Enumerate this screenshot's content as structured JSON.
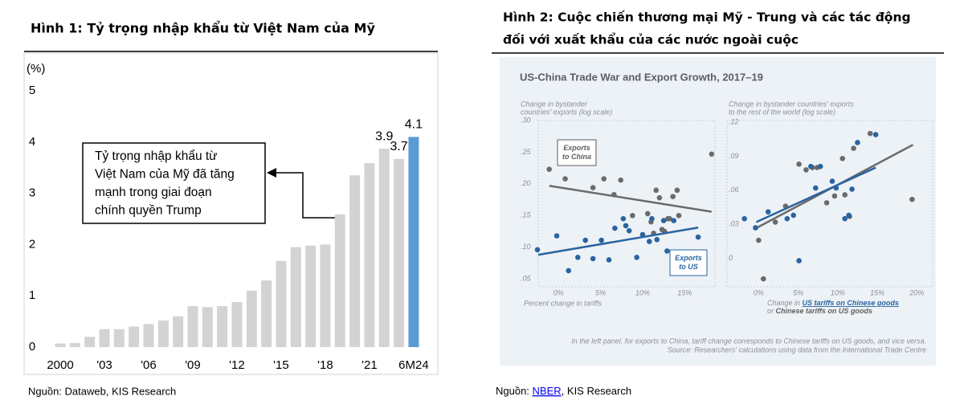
{
  "figures": [
    {
      "title": "Hình 1: Tỷ trọng nhập khẩu từ Việt Nam của Mỹ",
      "source": "Nguồn: Dataweb, KIS Research"
    },
    {
      "title": [
        "Hình 2: Cuộc chiến thương mại Mỹ - Trung và các tác động",
        "đối với xuất khẩu của các nước ngoài cuộc"
      ],
      "source_prefix": "Nguồn: ",
      "source_link": "NBER",
      "source_suffix": ", KIS Research"
    }
  ],
  "chart_data": [
    {
      "type": "bar",
      "ylabel": "(%)",
      "categories": [
        "2000",
        null,
        null,
        "'03",
        null,
        null,
        "'06",
        null,
        null,
        "'09",
        null,
        null,
        "'12",
        null,
        null,
        "'15",
        null,
        null,
        "'18",
        null,
        null,
        "'21",
        null,
        null,
        "6M24"
      ],
      "values": [
        0.07,
        0.08,
        0.2,
        0.35,
        0.35,
        0.4,
        0.45,
        0.52,
        0.6,
        0.8,
        0.78,
        0.8,
        0.88,
        1.1,
        1.3,
        1.68,
        1.95,
        1.98,
        2.0,
        2.59,
        3.35,
        3.59,
        3.87,
        3.67,
        4.1
      ],
      "value_labels": [
        null,
        null,
        null,
        null,
        null,
        null,
        null,
        null,
        null,
        null,
        null,
        null,
        null,
        null,
        null,
        null,
        null,
        null,
        null,
        null,
        null,
        null,
        "3.9",
        "3.7",
        "4.1"
      ],
      "colors": [
        "#d3d3d3",
        "#d3d3d3",
        "#d3d3d3",
        "#d3d3d3",
        "#d3d3d3",
        "#d3d3d3",
        "#d3d3d3",
        "#d3d3d3",
        "#d3d3d3",
        "#d3d3d3",
        "#d3d3d3",
        "#d3d3d3",
        "#d3d3d3",
        "#d3d3d3",
        "#d3d3d3",
        "#d3d3d3",
        "#d3d3d3",
        "#d3d3d3",
        "#d3d3d3",
        "#d3d3d3",
        "#d3d3d3",
        "#d3d3d3",
        "#d3d3d3",
        "#d3d3d3",
        "#5b9bd5"
      ],
      "ylim": [
        0,
        5
      ],
      "yticks": [
        0,
        1,
        2,
        3,
        4,
        5
      ],
      "annotation": [
        "Tỷ trọng nhập khẩu từ",
        "Việt Nam của Mỹ đã tăng",
        "mạnh trong giai đoạn",
        "chính quyền Trump"
      ]
    },
    {
      "type": "scatter",
      "title": "US-China Trade War and Export Growth, 2017–19",
      "ylabel": [
        "Change in bystander",
        "countries' exports (log scale)"
      ],
      "xlabel": "Percent change in tariffs",
      "xlim": [
        -2.5,
        18.5
      ],
      "ylim": [
        0.04,
        0.3
      ],
      "xticks": [
        {
          "value": 0,
          "label": "0%"
        },
        {
          "value": 5,
          "label": "5%"
        },
        {
          "value": 10,
          "label": "10%"
        },
        {
          "value": 15,
          "label": "15%"
        }
      ],
      "yticks": [
        {
          "value": 0.05,
          "label": ".05"
        },
        {
          "value": 0.1,
          "label": ".10"
        },
        {
          "value": 0.15,
          "label": ".15"
        },
        {
          "value": 0.2,
          "label": ".20"
        },
        {
          "value": 0.25,
          "label": ".25"
        },
        {
          "value": 0.3,
          "label": ".30"
        }
      ],
      "series": [
        {
          "name": "Exports to China",
          "color": "#6b6b6b",
          "x": [
            -1.1,
            0.8,
            4.1,
            5.4,
            6.6,
            7.4,
            8.8,
            10.6,
            11.0,
            11.6,
            12.0,
            12.6,
            13.2,
            13.6,
            14.1,
            14.3,
            13.0,
            12.3,
            11.3,
            18.2
          ],
          "values": [
            0.223,
            0.208,
            0.194,
            0.208,
            0.183,
            0.206,
            0.15,
            0.153,
            0.14,
            0.19,
            0.178,
            0.125,
            0.145,
            0.18,
            0.19,
            0.15,
            0.145,
            0.128,
            0.122,
            0.247
          ],
          "trend": {
            "x": [
              -1.1,
              18.2
            ],
            "values": [
              0.197,
              0.156
            ]
          }
        },
        {
          "name": "Exports to US",
          "color": "#2a64a0",
          "x": [
            -2.5,
            -0.2,
            1.2,
            2.3,
            3.2,
            4.1,
            5.1,
            6.0,
            6.7,
            7.7,
            8.0,
            8.4,
            9.3,
            10.0,
            10.8,
            11.1,
            11.7,
            12.5,
            13.7,
            12.9,
            16.6
          ],
          "values": [
            0.096,
            0.118,
            0.063,
            0.084,
            0.111,
            0.082,
            0.111,
            0.08,
            0.13,
            0.145,
            0.134,
            0.126,
            0.084,
            0.12,
            0.109,
            0.145,
            0.112,
            0.142,
            0.142,
            0.094,
            0.116
          ],
          "trend": {
            "x": [
              -2.4,
              16.6
            ],
            "values": [
              0.088,
              0.131
            ]
          }
        }
      ]
    },
    {
      "type": "scatter",
      "ylabel": [
        "Change in bystander countries' exports",
        "to the rest of the world (log scale)"
      ],
      "xlabel": [
        [
          "Change in ",
          "US tariffs on Chinese goods"
        ],
        [
          "or ",
          "Chinese tariffs on US goods"
        ]
      ],
      "xlim": [
        -4,
        22
      ],
      "ylim": [
        -0.025,
        0.12
      ],
      "xticks": [
        {
          "value": 0,
          "label": "0%"
        },
        {
          "value": 5,
          "label": "5%"
        },
        {
          "value": 10,
          "label": "10%"
        },
        {
          "value": 15,
          "label": "15%"
        },
        {
          "value": 20,
          "label": "20%"
        }
      ],
      "yticks": [
        0,
        {
          "value": 0.03,
          "label": ".03"
        },
        {
          "value": 0.06,
          "label": ".06"
        },
        {
          "value": 0.09,
          "label": ".09"
        },
        {
          "value": 0.12,
          "label": ".12"
        }
      ],
      "series": [
        {
          "color": "#6b6b6b",
          "x": [
            0,
            0.6,
            2.1,
            3.4,
            5.1,
            6.0,
            7.4,
            8.6,
            9.6,
            10.6,
            11.5,
            12.0,
            14.1,
            19.4,
            10.9,
            6.8
          ],
          "values": [
            0.016,
            -0.018,
            0.032,
            0.046,
            0.083,
            0.078,
            0.08,
            0.049,
            0.055,
            0.088,
            0.037,
            0.097,
            0.11,
            0.052,
            0.056,
            0.08
          ],
          "trend": {
            "x": [
              -0.5,
              19.5
            ],
            "values": [
              0.026,
              0.1
            ]
          }
        },
        {
          "color": "#2a64a0",
          "x": [
            -1.8,
            -0.4,
            1.2,
            5.1,
            4.4,
            6.6,
            7.8,
            9.8,
            10.9,
            11.4,
            11.8,
            12.5,
            14.8,
            9.3,
            7.2,
            3.6
          ],
          "values": [
            0.035,
            0.027,
            0.041,
            -0.002,
            0.038,
            0.081,
            0.081,
            0.062,
            0.035,
            0.038,
            0.061,
            0.102,
            0.109,
            0.068,
            0.062,
            0.035
          ],
          "trend": {
            "x": [
              -0.3,
              14.8
            ],
            "values": [
              0.032,
              0.08
            ]
          }
        }
      ],
      "notes": [
        "In the left panel, for exports to China, tariff change corresponds to Chinese tariffs on US goods, and vice versa.",
        "Source: Researchers' calculations using data from the International Trade Centre"
      ]
    }
  ]
}
